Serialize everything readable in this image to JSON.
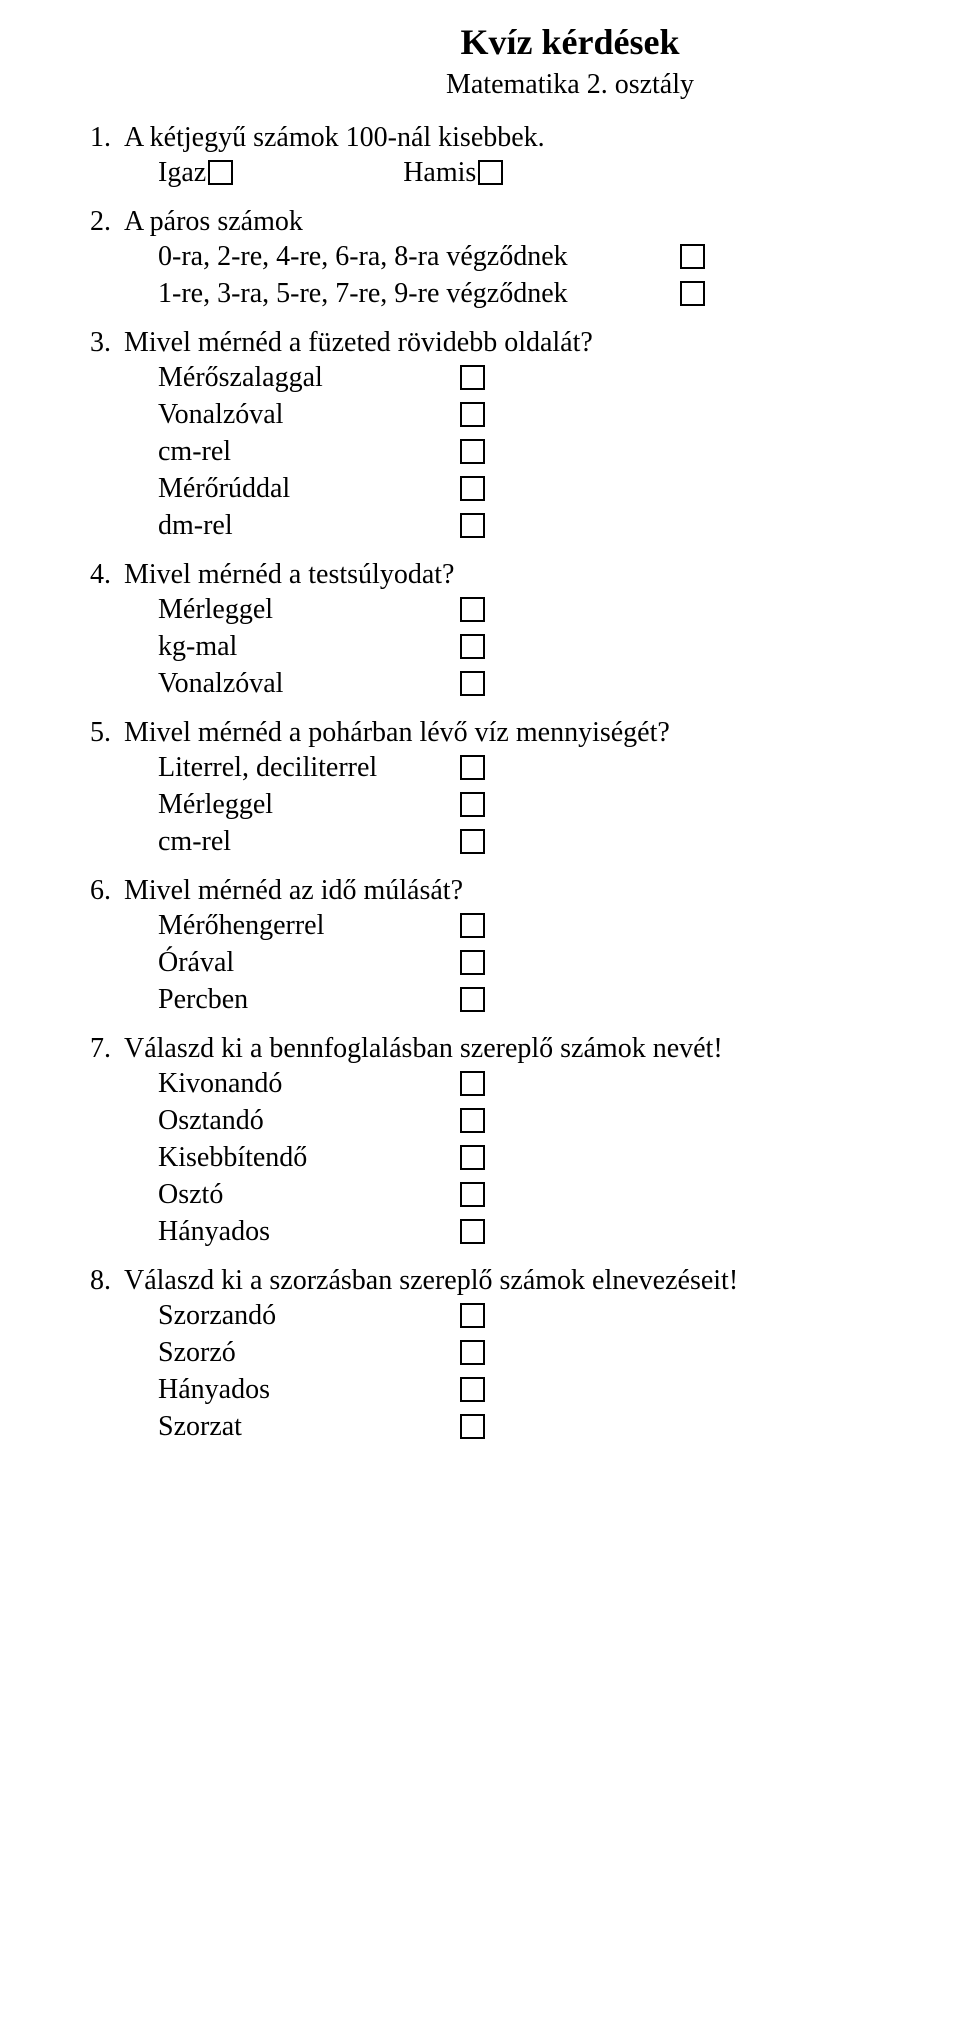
{
  "title": "Kvíz kérdések",
  "subtitle": "Matematika 2. osztály",
  "tf": {
    "true": "Igaz",
    "false": "Hamis"
  },
  "q1": {
    "num": "1.",
    "text": "A kétjegyű számok 100-nál kisebbek."
  },
  "q2": {
    "num": "2.",
    "text": "A páros számok",
    "line1": "0-ra, 2-re, 4-re, 6-ra, 8-ra végződnek",
    "line2": "1-re, 3-ra, 5-re, 7-re, 9-re végződnek"
  },
  "q3": {
    "num": "3.",
    "text": "Mivel mérnéd a füzeted rövidebb oldalát?",
    "opts": [
      "Mérőszalaggal",
      "Vonalzóval",
      "cm-rel",
      "Mérőrúddal",
      "dm-rel"
    ]
  },
  "q4": {
    "num": "4.",
    "text": "Mivel mérnéd a testsúlyodat?",
    "opts": [
      "Mérleggel",
      "kg-mal",
      "Vonalzóval"
    ]
  },
  "q5": {
    "num": "5.",
    "text": "Mivel mérnéd a pohárban lévő víz mennyiségét?",
    "opts": [
      "Literrel, deciliterrel",
      "Mérleggel",
      "cm-rel"
    ]
  },
  "q6": {
    "num": "6.",
    "text": "Mivel mérnéd az idő múlását?",
    "opts": [
      "Mérőhengerrel",
      "Órával",
      "Percben"
    ]
  },
  "q7": {
    "num": "7.",
    "text": "Válaszd ki a bennfoglalásban szereplő számok nevét!",
    "opts": [
      "Kivonandó",
      "Osztandó",
      "Kisebbítendő",
      "Osztó",
      "Hányados"
    ]
  },
  "q8": {
    "num": "8.",
    "text": "Válaszd ki a szorzásban szereplő számok elnevezéseit!",
    "opts": [
      "Szorzandó",
      "Szorzó",
      "Hányados",
      "Szorzat"
    ]
  }
}
